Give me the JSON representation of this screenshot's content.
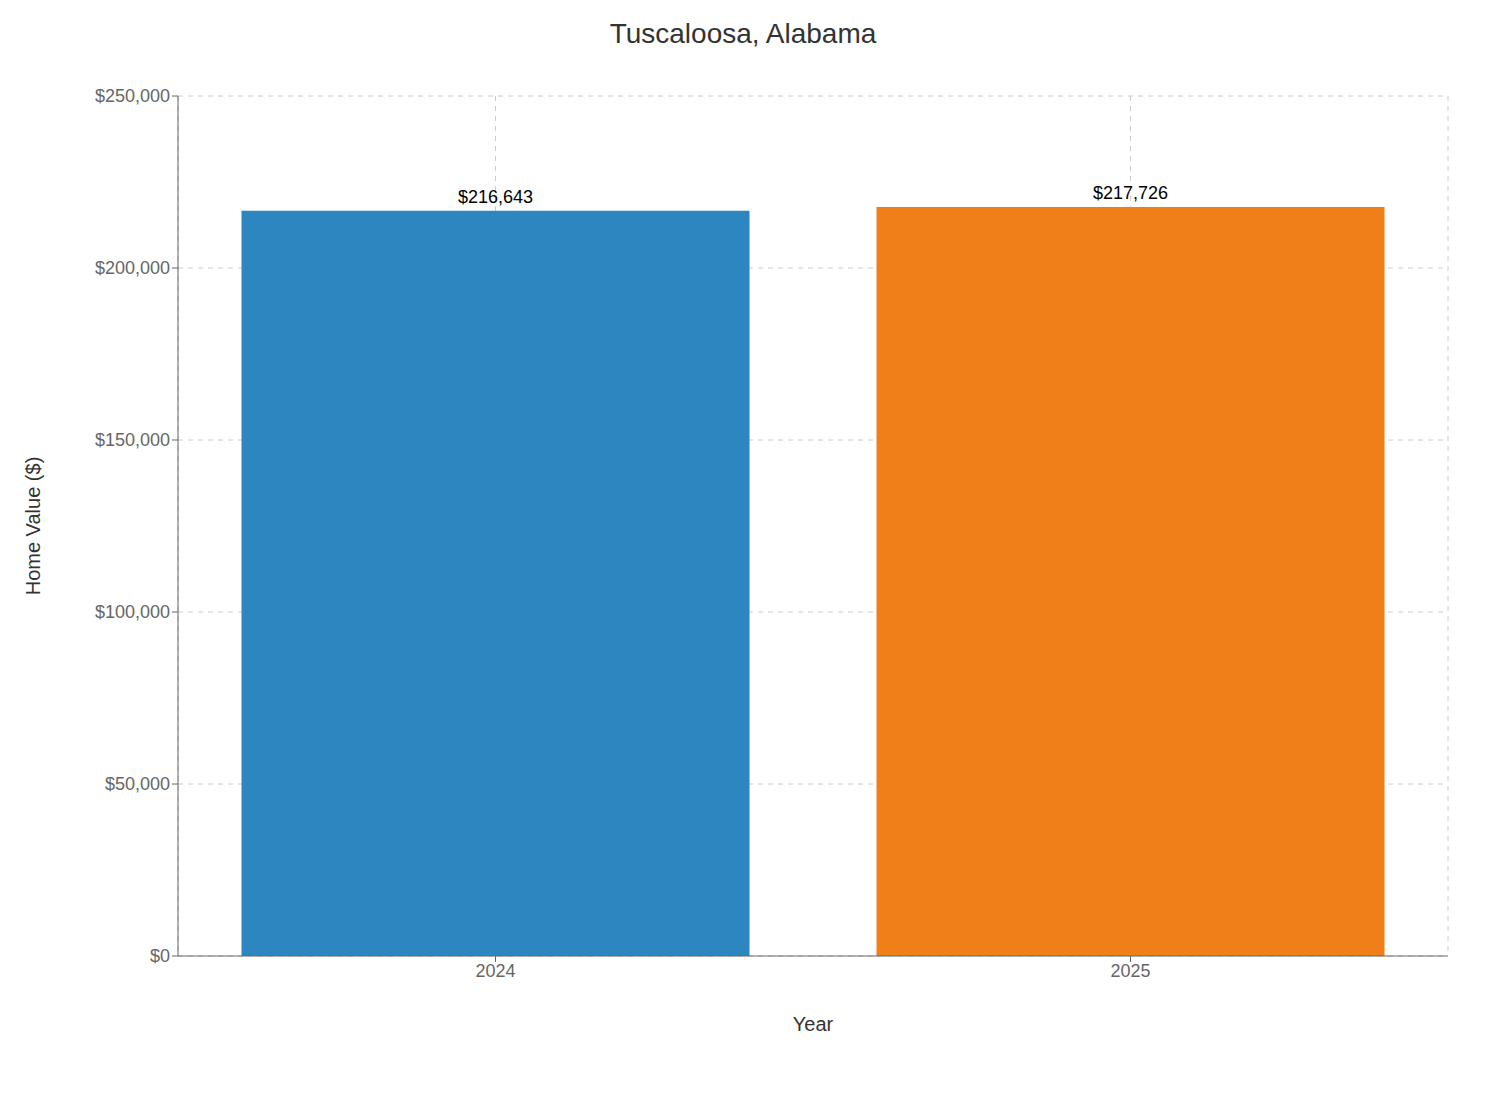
{
  "chart_data": {
    "type": "bar",
    "title": "Tuscaloosa, Alabama",
    "xlabel": "Year",
    "ylabel": "Home Value ($)",
    "categories": [
      "2024",
      "2025"
    ],
    "values": [
      216643,
      217726
    ],
    "value_labels": [
      "$216,643",
      "$217,726"
    ],
    "data_labels": true,
    "colors": [
      "#2e86c1",
      "#f07f1a"
    ],
    "ylim": [
      0,
      250000
    ],
    "yticks": [
      {
        "value": 0,
        "label": "$0"
      },
      {
        "value": 50000,
        "label": "$50,000"
      },
      {
        "value": 100000,
        "label": "$100,000"
      },
      {
        "value": 150000,
        "label": "$150,000"
      },
      {
        "value": 200000,
        "label": "$200,000"
      },
      {
        "value": 250000,
        "label": "$250,000"
      }
    ],
    "grid": true
  }
}
